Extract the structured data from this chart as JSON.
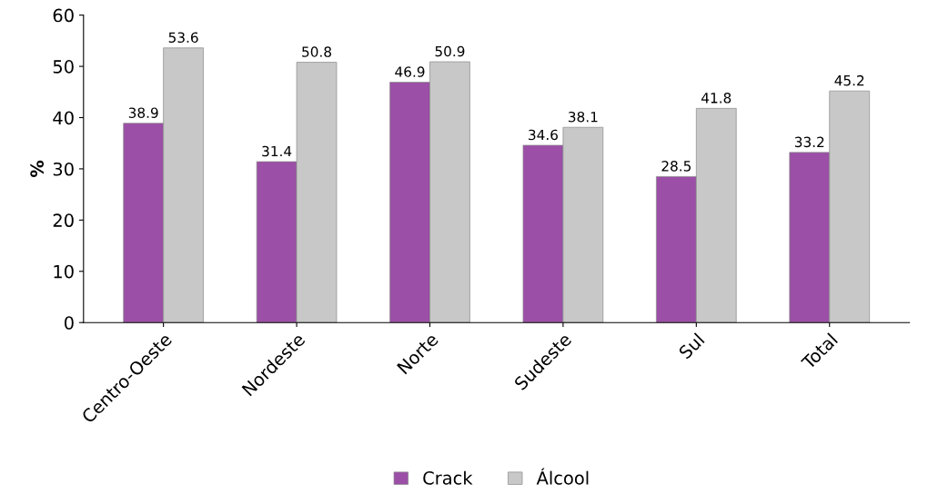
{
  "chart_data": {
    "type": "bar",
    "ylabel": "%",
    "categories": [
      "Centro-Oeste",
      "Nordeste",
      "Norte",
      "Sudeste",
      "Sul",
      "Total"
    ],
    "series": [
      {
        "name": "Crack",
        "color": "#9b4fa6",
        "values": [
          38.9,
          31.4,
          46.9,
          34.6,
          28.5,
          33.2
        ]
      },
      {
        "name": "Álcool",
        "color": "#c8c8c8",
        "values": [
          53.6,
          50.8,
          50.9,
          38.1,
          41.8,
          45.2
        ]
      }
    ],
    "ylim": [
      0,
      60
    ],
    "yticks": [
      0,
      10,
      20,
      30,
      40,
      50,
      60
    ],
    "data_labels": true,
    "legend": "bottom",
    "grid": false
  }
}
